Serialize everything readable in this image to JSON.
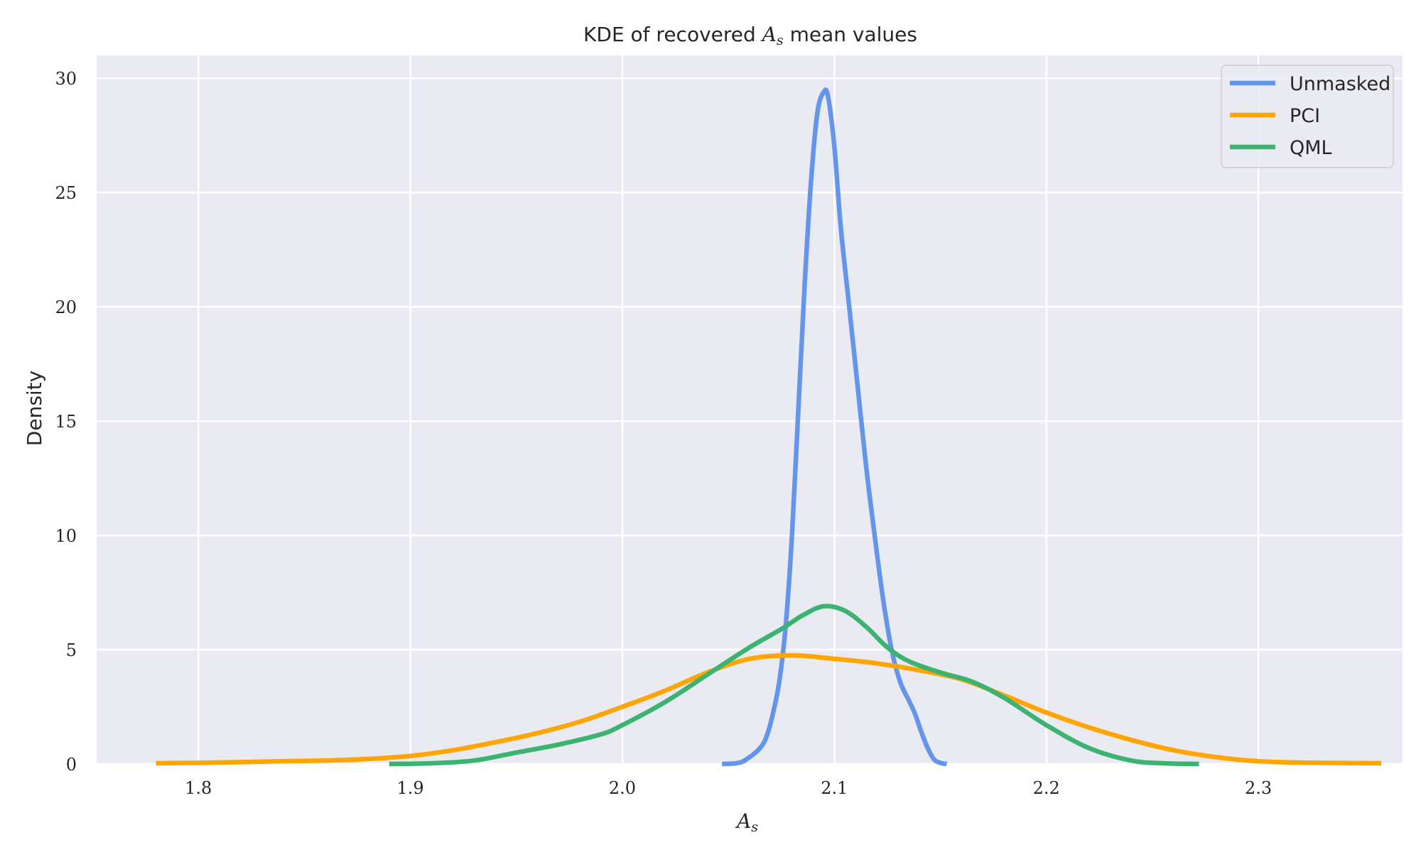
{
  "chart_data": {
    "type": "line",
    "title_prefix": "KDE of recovered ",
    "title_symbol": "A",
    "title_subscript": "s",
    "title_suffix": " mean values",
    "xlabel_symbol": "A",
    "xlabel_subscript": "s",
    "ylabel": "Density",
    "xlim": [
      1.752,
      2.368
    ],
    "ylim": [
      0,
      31
    ],
    "xticks": [
      1.8,
      1.9,
      2.0,
      2.1,
      2.2,
      2.3
    ],
    "xtick_labels": [
      "1.8",
      "1.9",
      "2.0",
      "2.1",
      "2.2",
      "2.3"
    ],
    "yticks": [
      0,
      5,
      10,
      15,
      20,
      25,
      30
    ],
    "ytick_labels": [
      "0",
      "5",
      "10",
      "15",
      "20",
      "25",
      "30"
    ],
    "grid": true,
    "background": "#eaeaf2",
    "legend_position": "top-right",
    "series": [
      {
        "name": "Unmasked",
        "color": "#6495ed",
        "points": [
          [
            2.047,
            0.0
          ],
          [
            2.055,
            0.05
          ],
          [
            2.06,
            0.3
          ],
          [
            2.065,
            0.7
          ],
          [
            2.068,
            1.2
          ],
          [
            2.071,
            2.2
          ],
          [
            2.074,
            3.6
          ],
          [
            2.077,
            6.0
          ],
          [
            2.08,
            10.0
          ],
          [
            2.083,
            15.5
          ],
          [
            2.086,
            21.0
          ],
          [
            2.089,
            25.5
          ],
          [
            2.092,
            28.5
          ],
          [
            2.095,
            29.4
          ],
          [
            2.097,
            29.2
          ],
          [
            2.1,
            27.0
          ],
          [
            2.103,
            23.5
          ],
          [
            2.107,
            20.0
          ],
          [
            2.111,
            16.5
          ],
          [
            2.115,
            13.0
          ],
          [
            2.119,
            10.0
          ],
          [
            2.123,
            7.2
          ],
          [
            2.127,
            5.0
          ],
          [
            2.131,
            3.6
          ],
          [
            2.135,
            2.8
          ],
          [
            2.138,
            2.2
          ],
          [
            2.141,
            1.4
          ],
          [
            2.144,
            0.7
          ],
          [
            2.147,
            0.2
          ],
          [
            2.15,
            0.05
          ],
          [
            2.153,
            0.0
          ]
        ]
      },
      {
        "name": "PCI",
        "color": "#ffa500",
        "points": [
          [
            1.78,
            0.03
          ],
          [
            1.8,
            0.05
          ],
          [
            1.82,
            0.08
          ],
          [
            1.84,
            0.12
          ],
          [
            1.86,
            0.15
          ],
          [
            1.88,
            0.22
          ],
          [
            1.9,
            0.35
          ],
          [
            1.92,
            0.6
          ],
          [
            1.94,
            0.95
          ],
          [
            1.96,
            1.35
          ],
          [
            1.98,
            1.85
          ],
          [
            2.0,
            2.5
          ],
          [
            2.02,
            3.2
          ],
          [
            2.04,
            4.0
          ],
          [
            2.06,
            4.6
          ],
          [
            2.08,
            4.75
          ],
          [
            2.1,
            4.6
          ],
          [
            2.12,
            4.4
          ],
          [
            2.14,
            4.1
          ],
          [
            2.16,
            3.7
          ],
          [
            2.18,
            3.0
          ],
          [
            2.2,
            2.25
          ],
          [
            2.22,
            1.6
          ],
          [
            2.24,
            1.05
          ],
          [
            2.26,
            0.6
          ],
          [
            2.28,
            0.3
          ],
          [
            2.3,
            0.12
          ],
          [
            2.32,
            0.06
          ],
          [
            2.358,
            0.03
          ]
        ]
      },
      {
        "name": "QML",
        "color": "#3cb371",
        "points": [
          [
            1.89,
            0.0
          ],
          [
            1.91,
            0.03
          ],
          [
            1.93,
            0.15
          ],
          [
            1.95,
            0.5
          ],
          [
            1.97,
            0.85
          ],
          [
            1.99,
            1.3
          ],
          [
            2.0,
            1.7
          ],
          [
            2.02,
            2.7
          ],
          [
            2.04,
            3.9
          ],
          [
            2.06,
            5.1
          ],
          [
            2.075,
            5.9
          ],
          [
            2.085,
            6.5
          ],
          [
            2.095,
            6.9
          ],
          [
            2.105,
            6.7
          ],
          [
            2.115,
            6.0
          ],
          [
            2.125,
            5.1
          ],
          [
            2.135,
            4.5
          ],
          [
            2.15,
            4.0
          ],
          [
            2.165,
            3.6
          ],
          [
            2.18,
            2.9
          ],
          [
            2.2,
            1.7
          ],
          [
            2.22,
            0.7
          ],
          [
            2.24,
            0.15
          ],
          [
            2.255,
            0.03
          ],
          [
            2.272,
            0.0
          ]
        ]
      }
    ]
  }
}
